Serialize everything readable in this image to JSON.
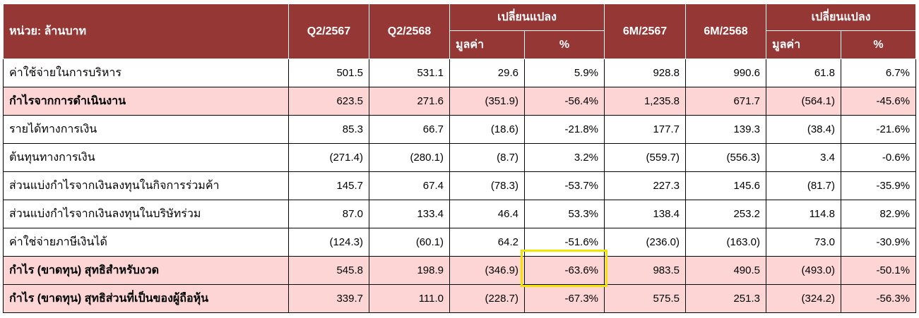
{
  "header": {
    "title": "หน่วย: ล้านบาท",
    "columns": [
      "Q2/2567",
      "Q2/2568",
      "เปลี่ยนแปลง",
      "6M/2567",
      "6M/2568",
      "เปลี่ยนแปลง"
    ],
    "subcolumns": [
      "มูลค่า",
      "%",
      "มูลค่า",
      "%"
    ]
  },
  "table": {
    "rows": [
      {
        "label": "ค่าใช้จ่ายในการบริหาร",
        "values": [
          "501.5",
          "531.1",
          "29.6",
          "5.9%",
          "928.8",
          "990.6",
          "61.8",
          "6.7%"
        ]
      },
      {
        "label": "กำไรจากการดำเนินงาน",
        "values": [
          "623.5",
          "271.6",
          "(351.9)",
          "-56.4%",
          "1,235.8",
          "671.7",
          "(564.1)",
          "-45.6%"
        ]
      },
      {
        "label": "รายได้ทางการเงิน",
        "values": [
          "85.3",
          "66.7",
          "(18.6)",
          "-21.8%",
          "177.7",
          "139.3",
          "(38.4)",
          "-21.6%"
        ]
      },
      {
        "label": "ต้นทุนทางการเงิน",
        "values": [
          "(271.4)",
          "(280.1)",
          "(8.7)",
          "3.2%",
          "(559.7)",
          "(556.3)",
          "3.4",
          "-0.6%"
        ]
      },
      {
        "label": "ส่วนแบ่งกำไรจากเงินลงทุนในกิจการร่วมค้า",
        "values": [
          "145.7",
          "67.4",
          "(78.3)",
          "-53.7%",
          "227.3",
          "145.6",
          "(81.7)",
          "-35.9%"
        ]
      },
      {
        "label": "ส่วนแบ่งกำไรจากเงินลงทุนในบริษัทร่วม",
        "values": [
          "87.0",
          "133.4",
          "46.4",
          "53.3%",
          "138.4",
          "253.2",
          "114.8",
          "82.9%"
        ]
      },
      {
        "label": "ค่าใช่จ่ายภาษีเงินได้",
        "values": [
          "(124.3)",
          "(60.1)",
          "64.2",
          "-51.6%",
          "(236.0)",
          "(163.0)",
          "73.0",
          "-30.9%"
        ]
      },
      {
        "label": "กำไร (ขาดทุน) สุทธิสำหรับงวด",
        "values": [
          "545.8",
          "198.9",
          "(346.9)",
          "-63.6%",
          "983.5",
          "490.5",
          "(493.0)",
          "-50.1%"
        ]
      },
      {
        "label": "กำไร (ขาดทุน) สุทธิส่วนที่เป็นของผู้ถือหุ้น",
        "values": [
          "339.7",
          "111.0",
          "(228.7)",
          "-67.3%",
          "575.5",
          "251.3",
          "(324.2)",
          "-56.3%"
        ]
      }
    ]
  }
}
